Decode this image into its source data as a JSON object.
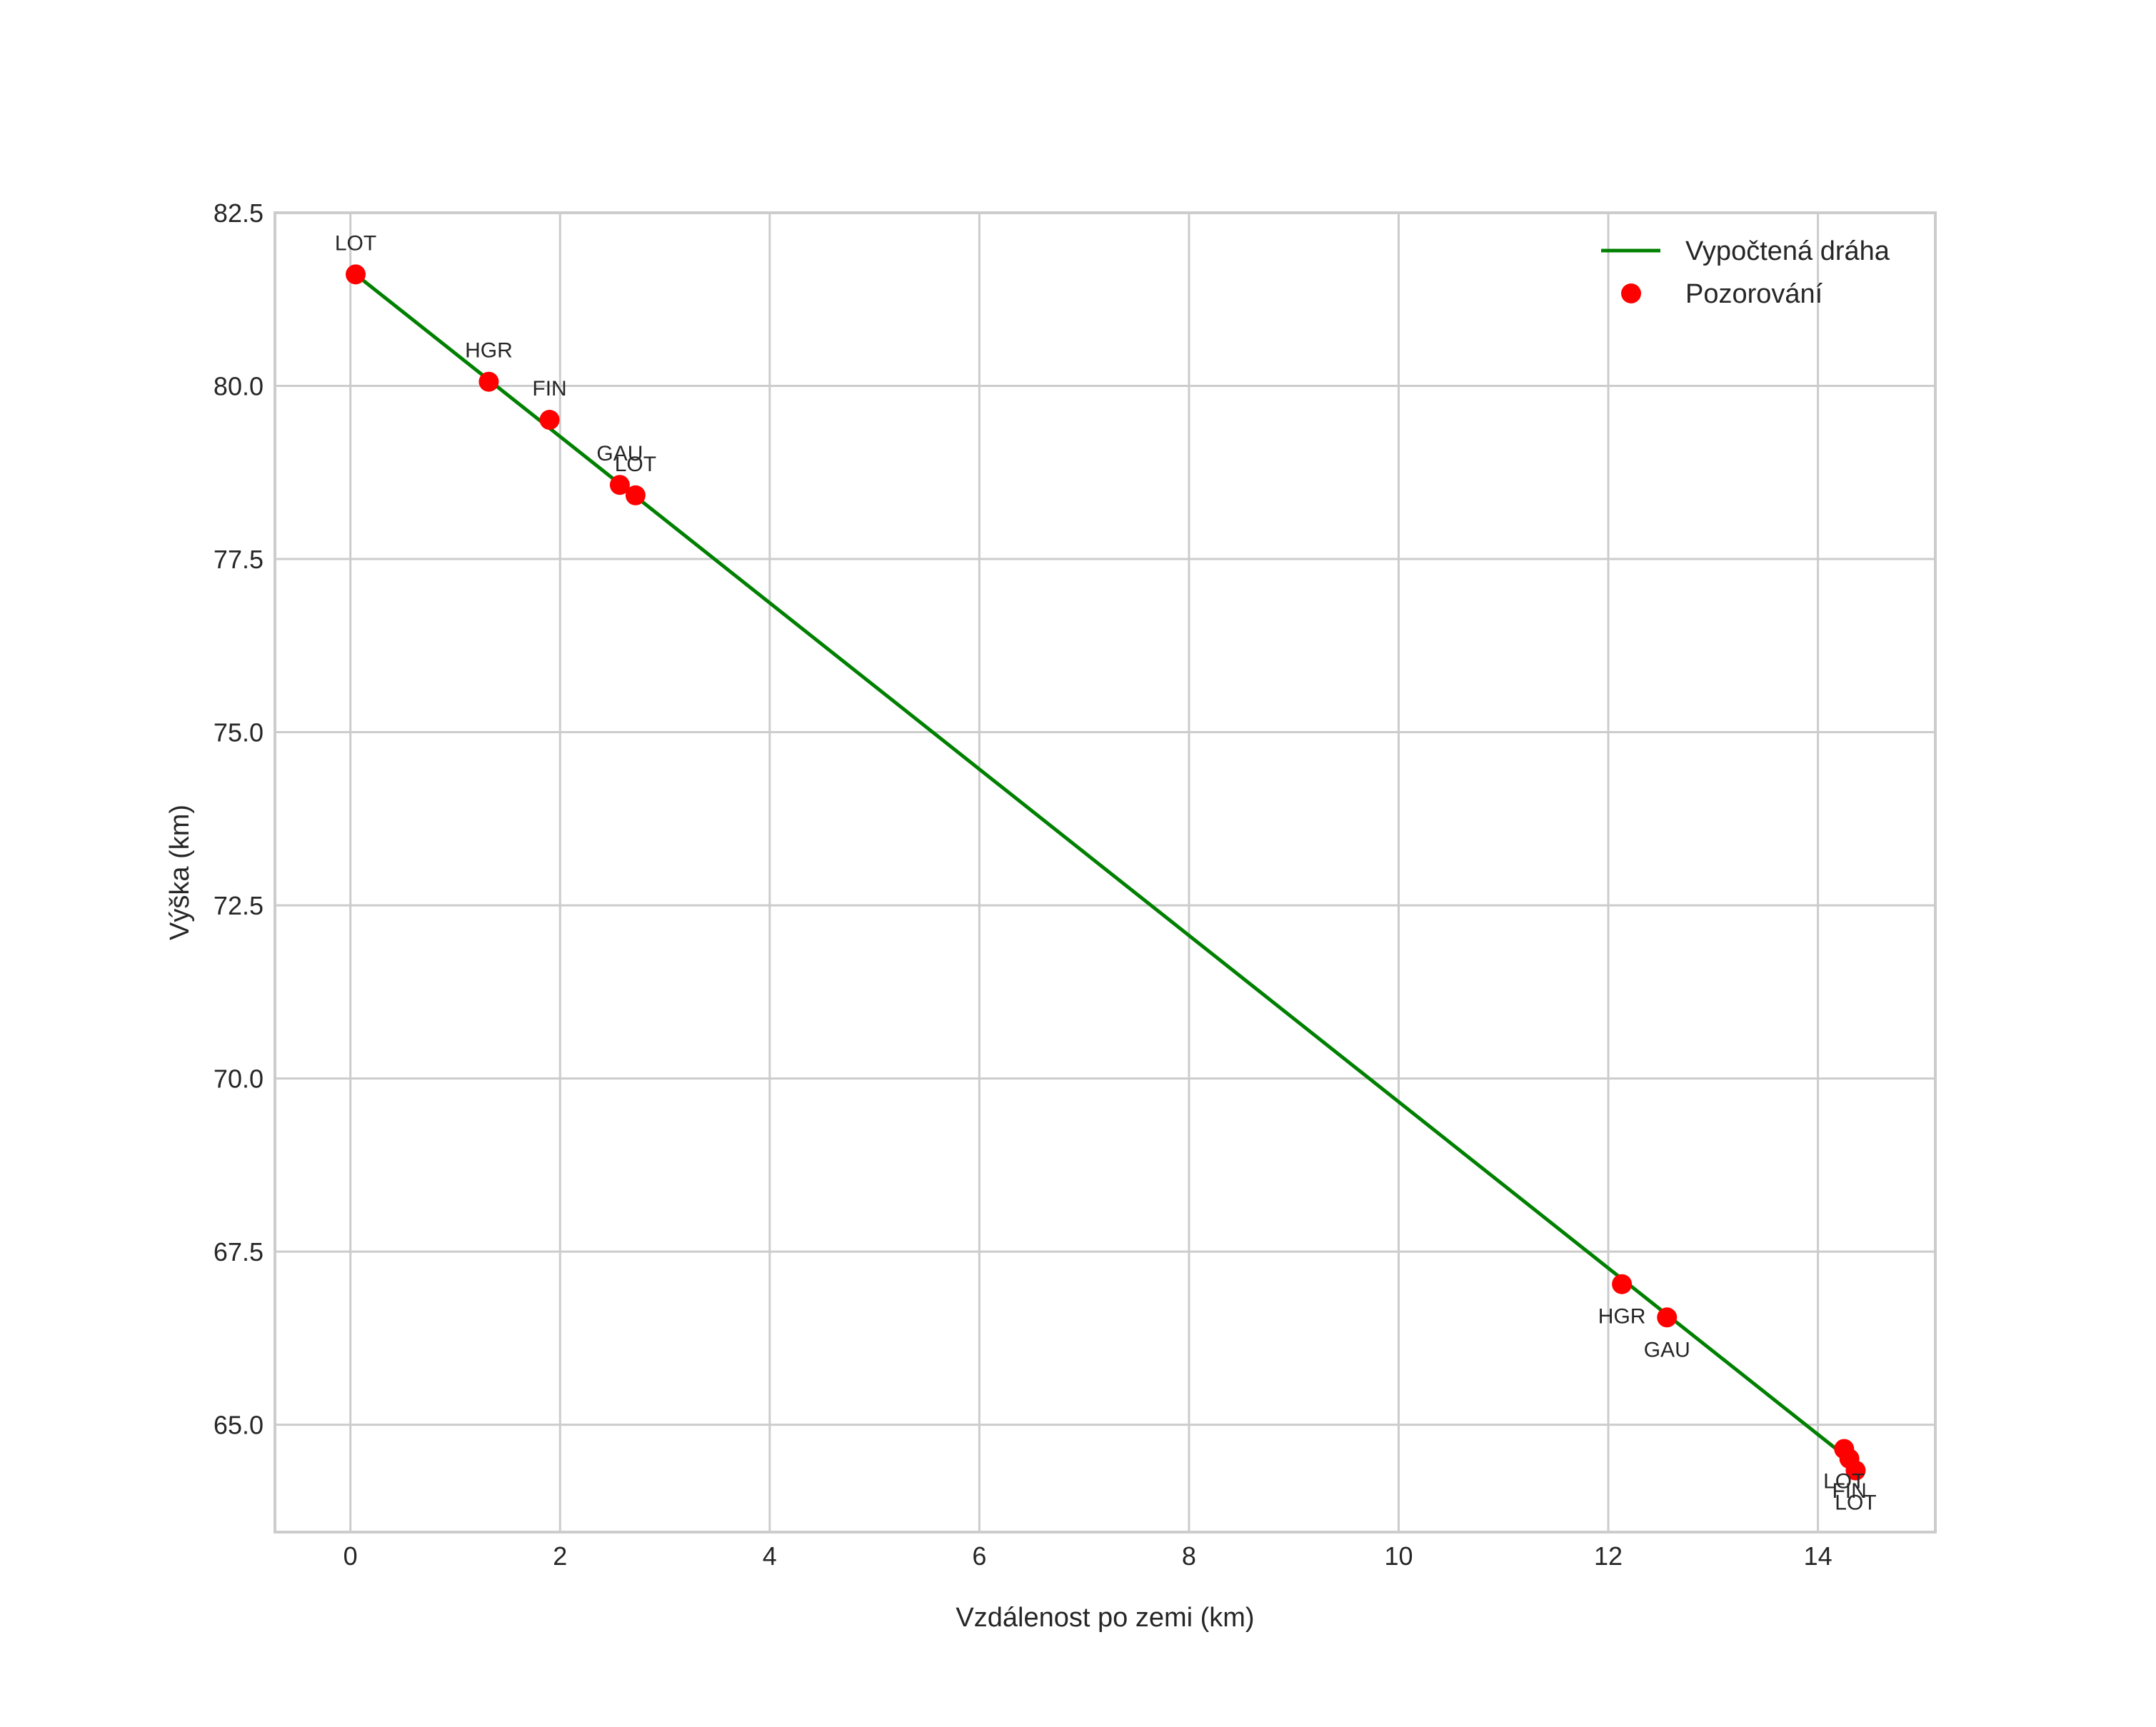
{
  "chart_data": {
    "type": "line",
    "title": "",
    "xlabel": "Vzdálenost po zemi (km)",
    "ylabel": "Výška (km)",
    "xlim": [
      -0.72,
      15.12
    ],
    "ylim": [
      63.45,
      82.5
    ],
    "grid": true,
    "legend_position": "upper right",
    "x_ticks": [
      0,
      2,
      4,
      6,
      8,
      10,
      12,
      14
    ],
    "x_tick_labels": [
      "0",
      "2",
      "4",
      "6",
      "8",
      "10",
      "12",
      "14"
    ],
    "y_ticks": [
      65.0,
      67.5,
      70.0,
      72.5,
      75.0,
      77.5,
      80.0,
      82.5
    ],
    "y_tick_labels": [
      "65.0",
      "67.5",
      "70.0",
      "72.5",
      "75.0",
      "77.5",
      "80.0",
      "82.5"
    ],
    "series": [
      {
        "name": "Vypočtená dráha",
        "kind": "line",
        "color": "#008000",
        "x": [
          0.05,
          14.2
        ],
        "y": [
          81.61,
          64.62
        ]
      },
      {
        "name": "Pozorování",
        "kind": "scatter",
        "color": "#ff0000",
        "points": [
          {
            "label": "LOT",
            "x": 0.05,
            "y": 81.61,
            "label_pos": "above"
          },
          {
            "label": "HGR",
            "x": 1.32,
            "y": 80.06,
            "label_pos": "above"
          },
          {
            "label": "FIN",
            "x": 1.9,
            "y": 79.51,
            "label_pos": "above"
          },
          {
            "label": "GAU",
            "x": 2.57,
            "y": 78.57,
            "label_pos": "above"
          },
          {
            "label": "LOT",
            "x": 2.72,
            "y": 78.42,
            "label_pos": "above"
          },
          {
            "label": "HGR",
            "x": 12.13,
            "y": 67.03,
            "label_pos": "below"
          },
          {
            "label": "GAU",
            "x": 12.56,
            "y": 66.55,
            "label_pos": "below"
          },
          {
            "label": "LOT",
            "x": 14.25,
            "y": 64.65,
            "label_pos": "below"
          },
          {
            "label": "FIN",
            "x": 14.3,
            "y": 64.51,
            "label_pos": "below"
          },
          {
            "label": "LOT",
            "x": 14.36,
            "y": 64.34,
            "label_pos": "below"
          }
        ]
      }
    ]
  },
  "legend": {
    "items": [
      {
        "label": "Vypočtená dráha",
        "marker": "line",
        "color": "#008000"
      },
      {
        "label": "Pozorování",
        "marker": "dot",
        "color": "#ff0000"
      }
    ]
  }
}
